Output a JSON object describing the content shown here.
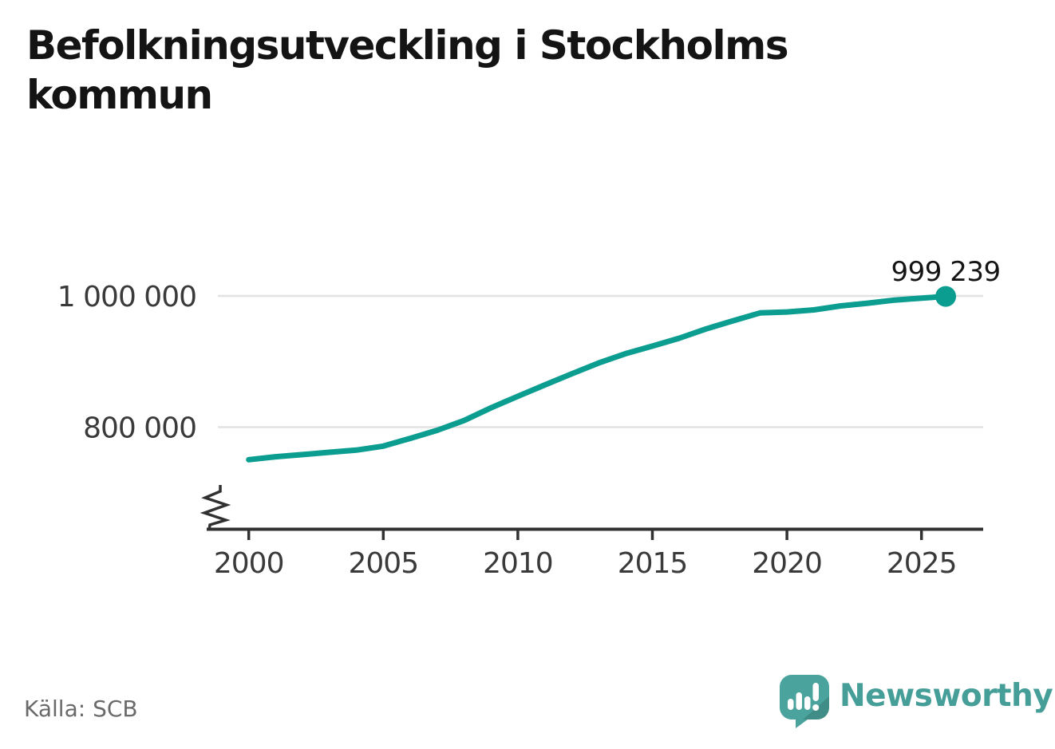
{
  "title": "Befolkningsutveckling i Stockholms kommun",
  "source": "Källa: SCB",
  "branding": {
    "name": "Newsworthy",
    "icon": "newsworthy-speech-bubble-chart-icon",
    "text_color": "#469e98",
    "icon_color": "#4aa39c"
  },
  "colors": {
    "line": "#0a9d90",
    "grid": "#e2e2e2",
    "axis": "#313131",
    "tick_label": "#3a3a3a",
    "end_label": "#141414"
  },
  "chart_data": {
    "type": "line",
    "title": "Befolkningsutveckling i Stockholms kommun",
    "xlabel": "",
    "ylabel": "",
    "legend_position": "none",
    "grid": "horizontal-only",
    "axis_break": true,
    "x_ticks": [
      2000,
      2005,
      2010,
      2015,
      2020,
      2025
    ],
    "y_ticks": [
      {
        "value": 800000,
        "label": "800 000"
      },
      {
        "value": 1000000,
        "label": "1 000 000"
      }
    ],
    "xlim": [
      1998.5,
      2027.3
    ],
    "ylim_displayed": [
      735000,
      1040000
    ],
    "series_name": "Befolkning i Stockholms kommun",
    "x": [
      2000,
      2001,
      2002,
      2003,
      2004,
      2005,
      2006,
      2007,
      2008,
      2009,
      2010,
      2011,
      2012,
      2013,
      2014,
      2015,
      2016,
      2017,
      2018,
      2019,
      2020,
      2021,
      2022,
      2023,
      2024,
      2025.9
    ],
    "values": [
      750348,
      754948,
      758148,
      761721,
      765044,
      771038,
      782885,
      795163,
      810120,
      829417,
      847073,
      864324,
      881235,
      897700,
      911989,
      923516,
      935619,
      949761,
      962154,
      974073,
      975551,
      978770,
      984748,
      988943,
      993696,
      999239
    ],
    "end_value": 999239,
    "end_label": "999 239"
  }
}
